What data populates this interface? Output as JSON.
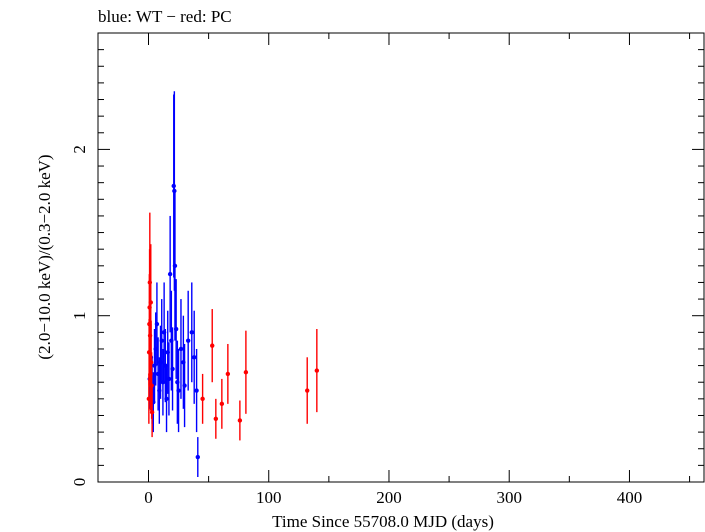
{
  "chart_data": {
    "type": "scatter",
    "title": "blue: WT − red: PC",
    "xlabel": "Time Since 55708.0 MJD (days)",
    "ylabel": "(2.0−10.0 keV)/(0.3−2.0 keV)",
    "xlim": [
      -42,
      462
    ],
    "ylim": [
      0,
      2.7
    ],
    "xticks": [
      0,
      100,
      200,
      300,
      400
    ],
    "xtick_labels": [
      "0",
      "100",
      "200",
      "300",
      "400"
    ],
    "yticks": [
      0,
      1,
      2
    ],
    "ytick_labels": [
      "0",
      "1",
      "2"
    ],
    "grid": false,
    "legend": "none",
    "series": [
      {
        "color": "#0000ff",
        "points": [
          {
            "x": 1.0,
            "y": 0.62,
            "err": 0.18
          },
          {
            "x": 2.0,
            "y": 0.75,
            "err": 0.2
          },
          {
            "x": 3.0,
            "y": 0.55,
            "err": 0.2
          },
          {
            "x": 4.0,
            "y": 0.48,
            "err": 0.18
          },
          {
            "x": 5.0,
            "y": 0.7,
            "err": 0.22
          },
          {
            "x": 6.0,
            "y": 0.8,
            "err": 0.22
          },
          {
            "x": 7.0,
            "y": 0.95,
            "err": 0.25
          },
          {
            "x": 8.0,
            "y": 0.65,
            "err": 0.22
          },
          {
            "x": 9.0,
            "y": 0.55,
            "err": 0.2
          },
          {
            "x": 10.0,
            "y": 0.72,
            "err": 0.22
          },
          {
            "x": 11.0,
            "y": 0.85,
            "err": 0.25
          },
          {
            "x": 12.0,
            "y": 0.6,
            "err": 0.2
          },
          {
            "x": 13.0,
            "y": 0.9,
            "err": 0.3
          },
          {
            "x": 14.0,
            "y": 0.7,
            "err": 0.22
          },
          {
            "x": 15.0,
            "y": 0.5,
            "err": 0.2
          },
          {
            "x": 16.0,
            "y": 0.78,
            "err": 0.25
          },
          {
            "x": 17.0,
            "y": 0.62,
            "err": 0.22
          },
          {
            "x": 18.0,
            "y": 1.25,
            "err": 0.35
          },
          {
            "x": 19.0,
            "y": 0.85,
            "err": 0.3
          },
          {
            "x": 20.0,
            "y": 0.68,
            "err": 0.25
          },
          {
            "x": 21.0,
            "y": 1.78,
            "err": 0.55
          },
          {
            "x": 21.5,
            "y": 1.75,
            "err": 0.6
          },
          {
            "x": 22.0,
            "y": 1.3,
            "err": 0.45
          },
          {
            "x": 23.0,
            "y": 0.92,
            "err": 0.3
          },
          {
            "x": 24.0,
            "y": 0.6,
            "err": 0.25
          },
          {
            "x": 25.0,
            "y": 0.55,
            "err": 0.25
          },
          {
            "x": 27.0,
            "y": 0.8,
            "err": 0.3
          },
          {
            "x": 29.0,
            "y": 0.72,
            "err": 0.28
          },
          {
            "x": 30.0,
            "y": 0.58,
            "err": 0.25
          },
          {
            "x": 33.0,
            "y": 0.85,
            "err": 0.3
          },
          {
            "x": 36.0,
            "y": 0.9,
            "err": 0.3
          },
          {
            "x": 38.0,
            "y": 0.75,
            "err": 0.28
          },
          {
            "x": 40.0,
            "y": 0.55,
            "err": 0.25
          },
          {
            "x": 41.0,
            "y": 0.15,
            "err": 0.12
          }
        ]
      },
      {
        "color": "#ff0000",
        "points": [
          {
            "x": 0.3,
            "y": 0.5,
            "err": 0.15
          },
          {
            "x": 0.5,
            "y": 0.78,
            "err": 0.2
          },
          {
            "x": 0.7,
            "y": 0.95,
            "err": 0.3
          },
          {
            "x": 0.9,
            "y": 1.05,
            "err": 0.35
          },
          {
            "x": 1.1,
            "y": 1.2,
            "err": 0.42
          },
          {
            "x": 1.3,
            "y": 0.88,
            "err": 0.28
          },
          {
            "x": 1.6,
            "y": 0.65,
            "err": 0.22
          },
          {
            "x": 1.9,
            "y": 1.08,
            "err": 0.35
          },
          {
            "x": 2.2,
            "y": 0.72,
            "err": 0.25
          },
          {
            "x": 2.6,
            "y": 0.58,
            "err": 0.2
          },
          {
            "x": 3.0,
            "y": 0.42,
            "err": 0.15
          },
          {
            "x": 45.0,
            "y": 0.5,
            "err": 0.15
          },
          {
            "x": 53.0,
            "y": 0.82,
            "err": 0.22
          },
          {
            "x": 56.0,
            "y": 0.38,
            "err": 0.12
          },
          {
            "x": 61.0,
            "y": 0.47,
            "err": 0.15
          },
          {
            "x": 66.0,
            "y": 0.65,
            "err": 0.18
          },
          {
            "x": 76.0,
            "y": 0.37,
            "err": 0.12
          },
          {
            "x": 81.0,
            "y": 0.66,
            "err": 0.25
          },
          {
            "x": 132.0,
            "y": 0.55,
            "err": 0.2
          },
          {
            "x": 140.0,
            "y": 0.67,
            "err": 0.25
          }
        ]
      }
    ]
  }
}
